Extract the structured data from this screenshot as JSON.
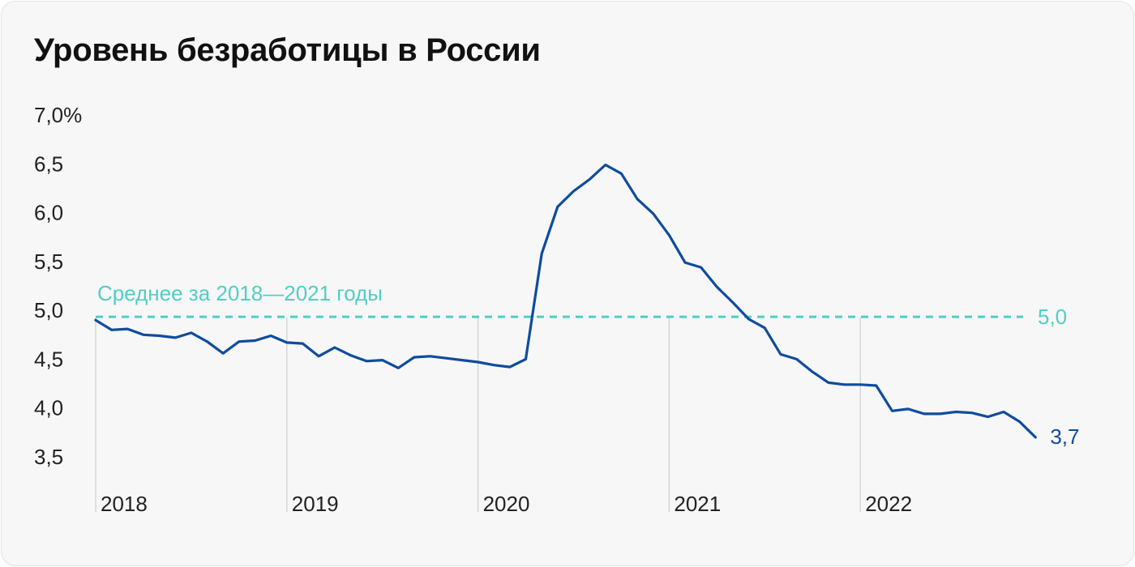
{
  "title": "Уровень безработицы в России",
  "colors": {
    "line": "#0f4c9c",
    "average": "#4fcfc4",
    "grid": "#cfcfcf",
    "text": "#222222",
    "background": "#f7f7f7"
  },
  "chart_data": {
    "type": "line",
    "title": "Уровень безработицы в России",
    "xlabel": "",
    "ylabel": "",
    "ylim": [
      3.5,
      7.0
    ],
    "y_ticks": [
      "7,0%",
      "6,5",
      "6,0",
      "5,5",
      "5,0",
      "4,5",
      "4,0",
      "3,5"
    ],
    "x_ticks": [
      "2018",
      "2019",
      "2020",
      "2021",
      "2022"
    ],
    "grid": "vertical lines at year starts",
    "series": [
      {
        "values": [
          4.9,
          4.8,
          4.81,
          4.75,
          4.74,
          4.72,
          4.77,
          4.68,
          4.56,
          4.68,
          4.69,
          4.74,
          4.67,
          4.66,
          4.53,
          4.62,
          4.54,
          4.48,
          4.49,
          4.41,
          4.52,
          4.53,
          4.51,
          4.49,
          4.47,
          4.44,
          4.42,
          4.5,
          5.58,
          6.06,
          6.22,
          6.34,
          6.49,
          6.4,
          6.14,
          5.99,
          5.77,
          5.49,
          5.44,
          5.24,
          5.08,
          4.91,
          4.82,
          4.55,
          4.5,
          4.37,
          4.26,
          4.24,
          4.24,
          4.23,
          3.97,
          3.99,
          3.94,
          3.94,
          3.96,
          3.95,
          3.91,
          3.96,
          3.86,
          3.7
        ]
      }
    ],
    "x_range": [
      "2018-01",
      "2022-12"
    ],
    "average_line": {
      "value": 5.0,
      "label": "Среднее за 2018—2021 годы",
      "value_label": "5,0"
    },
    "end_label": "3,7"
  }
}
